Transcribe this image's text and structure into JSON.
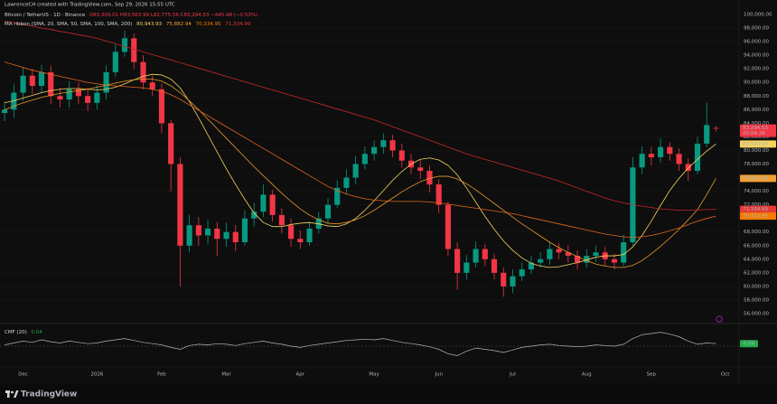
{
  "header": {
    "credit": "LawrenceCH created with TradingView.com, Sep 29, 2026 15:55 UTC"
  },
  "footer": {
    "brand": "TradingView"
  },
  "chart_data": [
    {
      "type": "candlestick",
      "title": "Bitcoin / TetherUS · 1D · Binance",
      "ohlc_label": "O83,309.01 H83,563.99 L82,775.56 C83,294.53 −445.48 (−0.53%)",
      "categories": [
        null,
        null,
        "Dec",
        null,
        null,
        null,
        null,
        null,
        null,
        null,
        "2026",
        null,
        null,
        null,
        null,
        null,
        null,
        "Feb",
        null,
        null,
        null,
        null,
        null,
        null,
        "Mar",
        null,
        null,
        null,
        null,
        null,
        null,
        null,
        "Apr",
        null,
        null,
        null,
        null,
        null,
        null,
        null,
        "May",
        null,
        null,
        null,
        null,
        null,
        null,
        "Jun",
        null,
        null,
        null,
        null,
        null,
        null,
        null,
        "Jul",
        null,
        null,
        null,
        null,
        null,
        null,
        null,
        "Aug",
        null,
        null,
        null,
        null,
        null,
        null,
        "Sep",
        null,
        null,
        null,
        null,
        null,
        null,
        null,
        "Oct",
        null
      ],
      "up_color": "#089981",
      "down_color": "#f23645",
      "open": [
        85500,
        86000,
        88500,
        91000,
        89500,
        91500,
        88000,
        87500,
        89000,
        88000,
        87000,
        88500,
        91500,
        94500,
        96500,
        93000,
        90000,
        89000,
        84000,
        78000,
        66000,
        69000,
        67500,
        68500,
        67000,
        68000,
        66500,
        70000,
        71000,
        73500,
        70500,
        69000,
        67000,
        66500,
        68500,
        70000,
        72000,
        74500,
        76000,
        78000,
        79500,
        80500,
        81500,
        80000,
        78500,
        77500,
        77000,
        75000,
        72000,
        65500,
        62000,
        63500,
        65500,
        64000,
        62000,
        60000,
        61500,
        62500,
        63500,
        64000,
        65500,
        65000,
        64500,
        63500,
        64500,
        65000,
        64000,
        63500,
        66500,
        77500,
        79500,
        79000,
        80500,
        79500,
        78000,
        77000,
        81000,
        83309.01,
        null,
        null
      ],
      "high": [
        87200,
        89700,
        92200,
        92000,
        92600,
        92500,
        89200,
        90200,
        90000,
        89200,
        89600,
        92500,
        95600,
        97600,
        97200,
        94000,
        91000,
        89800,
        84500,
        79000,
        70500,
        70200,
        69800,
        69500,
        69400,
        69000,
        71200,
        72300,
        75000,
        74200,
        71500,
        70000,
        68200,
        69500,
        71000,
        73000,
        75600,
        77200,
        79200,
        80600,
        81500,
        82500,
        82300,
        81000,
        79500,
        78600,
        77800,
        75800,
        72500,
        66500,
        64600,
        66600,
        66200,
        64800,
        62800,
        62500,
        63500,
        64500,
        65000,
        66600,
        66400,
        66000,
        65300,
        65500,
        66000,
        65800,
        64800,
        67600,
        79000,
        80600,
        80500,
        81800,
        81200,
        80300,
        78800,
        82000,
        87000,
        83563.99,
        null,
        null
      ],
      "low": [
        84300,
        84800,
        87300,
        88300,
        88400,
        86800,
        86300,
        86300,
        86800,
        85800,
        86000,
        87500,
        90800,
        93800,
        92000,
        89000,
        88000,
        82500,
        74000,
        60000,
        65000,
        66000,
        66200,
        64500,
        65800,
        65200,
        66000,
        68800,
        70200,
        69500,
        67800,
        65800,
        65500,
        66000,
        67800,
        69200,
        71500,
        73500,
        75000,
        77200,
        78500,
        79500,
        79000,
        77500,
        76500,
        75800,
        73800,
        70800,
        64500,
        59500,
        61000,
        62800,
        63000,
        61000,
        58500,
        59000,
        60800,
        61800,
        62800,
        63200,
        64000,
        63500,
        62500,
        62800,
        63600,
        63000,
        62500,
        63000,
        66000,
        76500,
        77800,
        78200,
        78500,
        77000,
        75500,
        76500,
        80500,
        82775.56,
        null,
        null
      ],
      "close": [
        86000,
        88500,
        91000,
        89500,
        91500,
        88000,
        87500,
        89000,
        88000,
        87000,
        88500,
        91500,
        94500,
        96500,
        93000,
        90000,
        89000,
        84000,
        78000,
        66000,
        69000,
        67500,
        68500,
        67000,
        68000,
        66500,
        70000,
        71000,
        73500,
        70500,
        69000,
        67000,
        66500,
        68500,
        70000,
        72000,
        74500,
        76000,
        78000,
        79500,
        80500,
        81500,
        80000,
        78500,
        77500,
        77000,
        75000,
        72000,
        65500,
        62000,
        63500,
        65500,
        64000,
        62000,
        60000,
        61500,
        62500,
        63500,
        64000,
        65500,
        65000,
        64500,
        63500,
        64500,
        65000,
        64000,
        63500,
        66500,
        77500,
        79500,
        79000,
        80500,
        79500,
        78000,
        77000,
        81000,
        83740.01,
        83294.53,
        null,
        null
      ],
      "ma_ribbon": {
        "title": "MA ribbon (SMA, 20, SMA, 50, SMA, 100, SMA, 200)",
        "lines": [
          {
            "color": "#f4d35e",
            "values": [
              87000,
              87300,
              87700,
              88100,
              88500,
              88800,
              89000,
              89100,
              89100,
              89000,
              88900,
              89000,
              89300,
              89800,
              90400,
              90900,
              91200,
              91100,
              90500,
              89200,
              87200,
              84800,
              82300,
              79800,
              77300,
              75000,
              72800,
              70800,
              69400,
              68800,
              68800,
              69100,
              69300,
              69400,
              69200,
              68900,
              68800,
              69200,
              70000,
              71200,
              72600,
              74100,
              75600,
              76900,
              78000,
              78700,
              78900,
              78600,
              77800,
              76400,
              74500,
              72400,
              70300,
              68400,
              66700,
              65300,
              64200,
              63400,
              63000,
              62800,
              62900,
              63200,
              63500,
              63900,
              64300,
              64500,
              64500,
              64700,
              65800,
              67500,
              69600,
              71900,
              74100,
              75900,
              77400,
              78700,
              79900,
              80943.93,
              null,
              null
            ]
          },
          {
            "color": "#e89a2c",
            "values": [
              86000,
              86500,
              87000,
              87400,
              87800,
              88100,
              88400,
              88600,
              88800,
              89000,
              89300,
              89600,
              89900,
              90200,
              90400,
              90500,
              90500,
              90200,
              89500,
              88500,
              87300,
              86000,
              84600,
              83200,
              81800,
              80400,
              79000,
              77600,
              76300,
              75000,
              73700,
              72500,
              71400,
              70500,
              69800,
              69300,
              69200,
              69400,
              69800,
              70400,
              71200,
              72100,
              73000,
              73900,
              74700,
              75400,
              75900,
              76200,
              76200,
              75800,
              75100,
              74200,
              73200,
              72200,
              71200,
              70200,
              69200,
              68300,
              67400,
              66500,
              65700,
              65000,
              64400,
              63800,
              63300,
              63000,
              62800,
              62800,
              63100,
              63800,
              64800,
              65900,
              67100,
              68400,
              69800,
              71300,
              73500,
              75882.94,
              null,
              null
            ]
          },
          {
            "color": "#e0651f",
            "values": [
              93000,
              92600,
              92200,
              91800,
              91500,
              91200,
              90900,
              90600,
              90300,
              90000,
              89800,
              89600,
              89500,
              89400,
              89300,
              89200,
              89000,
              88700,
              88200,
              87500,
              86700,
              85900,
              85100,
              84300,
              83500,
              82700,
              81900,
              81100,
              80300,
              79500,
              78700,
              77900,
              77100,
              76300,
              75500,
              74700,
              74100,
              73600,
              73200,
              72900,
              72700,
              72600,
              72500,
              72500,
              72500,
              72500,
              72400,
              72300,
              72100,
              71900,
              71700,
              71500,
              71300,
              71100,
              70900,
              70700,
              70400,
              70100,
              69800,
              69500,
              69200,
              68900,
              68600,
              68300,
              68000,
              67700,
              67500,
              67300,
              67200,
              67300,
              67500,
              67800,
              68200,
              68600,
              69100,
              69600,
              70000,
              70334.95,
              null,
              null
            ]
          },
          {
            "color": "#c62828",
            "values": [
              99000,
              98800,
              98500,
              98300,
              98000,
              97800,
              97500,
              97300,
              97000,
              96800,
              96500,
              96100,
              95700,
              95300,
              94900,
              94500,
              94100,
              93700,
              93300,
              92900,
              92500,
              92100,
              91700,
              91300,
              90900,
              90500,
              90100,
              89700,
              89300,
              88900,
              88500,
              88100,
              87700,
              87300,
              86900,
              86500,
              86100,
              85700,
              85300,
              84900,
              84500,
              84000,
              83500,
              83000,
              82500,
              82000,
              81500,
              81000,
              80500,
              80000,
              79500,
              79100,
              78700,
              78300,
              77900,
              77500,
              77100,
              76700,
              76300,
              75900,
              75500,
              75000,
              74500,
              74000,
              73500,
              73000,
              72600,
              72300,
              72000,
              71800,
              71600,
              71400,
              71300,
              71200,
              71200,
              71250,
              71300,
              71334.99,
              null,
              null
            ]
          }
        ]
      },
      "y_badges": [
        {
          "value": 83294.53,
          "label": "83,294.53",
          "color": "#f23645",
          "sub": "20:04:26"
        },
        {
          "value": 80943.93,
          "label": "80,943.93",
          "color": "#f4d35e"
        },
        {
          "value": 75882.94,
          "label": "75,882.94",
          "color": "#f0a030"
        },
        {
          "value": 71334.99,
          "label": "71,334.99",
          "color": "#e53935"
        },
        {
          "value": 70334.95,
          "label": "70,334.95",
          "color": "#f57c00"
        }
      ],
      "ylim": [
        54936,
        102127
      ],
      "yticks": [
        {
          "value": 56000,
          "label": "56,000.00"
        },
        {
          "value": 58000,
          "label": "58,000.00"
        },
        {
          "value": 60000,
          "label": "60,000.00"
        },
        {
          "value": 62000,
          "label": "62,000.00"
        },
        {
          "value": 64000,
          "label": "64,000.00"
        },
        {
          "value": 66000,
          "label": "66,000.00"
        },
        {
          "value": 68000,
          "label": "68,000.00"
        },
        {
          "value": 70000,
          "label": "70,000.00"
        },
        {
          "value": 72000,
          "label": "72,000.00"
        },
        {
          "value": 74000,
          "label": "74,000.00"
        },
        {
          "value": 76000,
          "label": "76,000.00"
        },
        {
          "value": 78000,
          "label": "78,000.00"
        },
        {
          "value": 80000,
          "label": "80,000.00"
        },
        {
          "value": 82000,
          "label": "82,000.00"
        },
        {
          "value": 84000,
          "label": "84,000.00"
        },
        {
          "value": 86000,
          "label": "86,000.00"
        },
        {
          "value": 88000,
          "label": "88,000.00"
        },
        {
          "value": 90000,
          "label": "90,000.00"
        },
        {
          "value": 92000,
          "label": "92,000.00"
        },
        {
          "value": 94000,
          "label": "94,000.00"
        },
        {
          "value": 96000,
          "label": "96,000.00"
        },
        {
          "value": 98000,
          "label": "98,000.00"
        },
        {
          "value": 100000,
          "label": "100,000.00"
        }
      ],
      "grid": true
    },
    {
      "type": "line",
      "title": "CMF (20)",
      "ylim": [
        -0.3,
        0.3
      ],
      "series": [
        {
          "color": "#b0b3b8",
          "badge_color": "#22ab4b",
          "values": [
            0.02,
            0.05,
            0.08,
            0.06,
            0.1,
            0.07,
            0.05,
            0.08,
            0.06,
            0.04,
            0.05,
            0.08,
            0.1,
            0.12,
            0.09,
            0.06,
            0.04,
            0.02,
            -0.02,
            -0.05,
            0.01,
            0.03,
            0.02,
            0.04,
            0.03,
            0.01,
            0.04,
            0.06,
            0.08,
            0.05,
            0.03,
            0.0,
            -0.02,
            0.01,
            0.03,
            0.05,
            0.07,
            0.09,
            0.1,
            0.11,
            0.1,
            0.12,
            0.09,
            0.06,
            0.04,
            0.02,
            -0.01,
            -0.05,
            -0.12,
            -0.15,
            -0.08,
            -0.03,
            -0.05,
            -0.07,
            -0.1,
            -0.06,
            -0.02,
            0.0,
            0.02,
            0.03,
            0.01,
            0.0,
            -0.01,
            0.0,
            0.02,
            0.01,
            0.0,
            0.03,
            0.12,
            0.18,
            0.2,
            0.22,
            0.19,
            0.15,
            0.08,
            0.03,
            0.05,
            0.04,
            null,
            null
          ]
        }
      ]
    }
  ]
}
